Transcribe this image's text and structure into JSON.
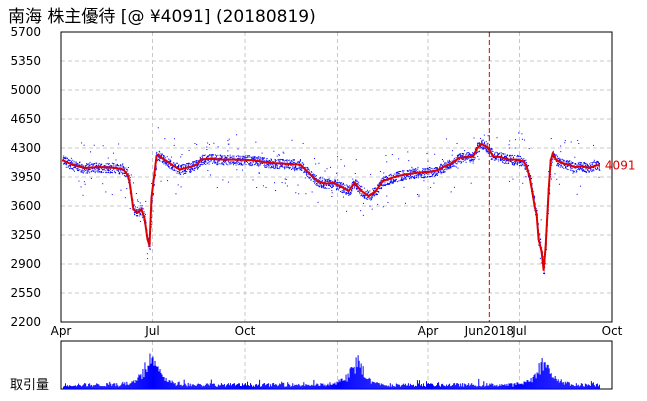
{
  "chart_data": {
    "type": "line",
    "title": "南海 株主優待 [@ ¥4091] (20180819)",
    "xlabel": "",
    "ylabel": "",
    "ylim": [
      2200,
      5700
    ],
    "yticks": [
      2200,
      2550,
      2900,
      3250,
      3600,
      3950,
      4300,
      4650,
      5000,
      5350,
      5700
    ],
    "x_range": [
      "2017-04-01",
      "2018-10-01"
    ],
    "x_ticks": [
      {
        "date": "2017-04-01",
        "label": "Apr"
      },
      {
        "date": "2017-07-01",
        "label": "Jul"
      },
      {
        "date": "2017-10-01",
        "label": "Oct"
      },
      {
        "date": "2018-01-01",
        "label": ""
      },
      {
        "date": "2018-04-01",
        "label": "Apr"
      },
      {
        "date": "2018-07-01",
        "label": "Jul"
      },
      {
        "date": "2018-10-01",
        "label": "Oct"
      }
    ],
    "marker": {
      "date": "2018-06-01",
      "label": "Jun2018",
      "color": "#dd0000"
    },
    "last_value": {
      "value": 4091,
      "label": "4091"
    },
    "grid": true,
    "series": [
      {
        "color": "#dd0000",
        "points": [
          [
            "2017-04-03",
            4150
          ],
          [
            "2017-04-12",
            4100
          ],
          [
            "2017-04-24",
            4060
          ],
          [
            "2017-05-10",
            4070
          ],
          [
            "2017-05-25",
            4060
          ],
          [
            "2017-06-02",
            4040
          ],
          [
            "2017-06-06",
            3980
          ],
          [
            "2017-06-08",
            3900
          ],
          [
            "2017-06-09",
            3820
          ],
          [
            "2017-06-12",
            3560
          ],
          [
            "2017-06-16",
            3520
          ],
          [
            "2017-06-20",
            3560
          ],
          [
            "2017-06-23",
            3450
          ],
          [
            "2017-06-26",
            3200
          ],
          [
            "2017-06-28",
            3120
          ],
          [
            "2017-06-30",
            3700
          ],
          [
            "2017-07-03",
            4000
          ],
          [
            "2017-07-05",
            4200
          ],
          [
            "2017-07-07",
            4220
          ],
          [
            "2017-07-10",
            4180
          ],
          [
            "2017-07-14",
            4150
          ],
          [
            "2017-07-20",
            4100
          ],
          [
            "2017-07-28",
            4040
          ],
          [
            "2017-08-07",
            4070
          ],
          [
            "2017-08-14",
            4100
          ],
          [
            "2017-08-18",
            4160
          ],
          [
            "2017-08-25",
            4170
          ],
          [
            "2017-09-10",
            4160
          ],
          [
            "2017-09-25",
            4160
          ],
          [
            "2017-10-10",
            4150
          ],
          [
            "2017-10-25",
            4120
          ],
          [
            "2017-11-10",
            4110
          ],
          [
            "2017-11-25",
            4100
          ],
          [
            "2017-12-05",
            3980
          ],
          [
            "2017-12-12",
            3900
          ],
          [
            "2017-12-20",
            3870
          ],
          [
            "2017-12-28",
            3880
          ],
          [
            "2018-01-05",
            3830
          ],
          [
            "2018-01-12",
            3780
          ],
          [
            "2018-01-18",
            3880
          ],
          [
            "2018-01-24",
            3790
          ],
          [
            "2018-02-01",
            3720
          ],
          [
            "2018-02-08",
            3780
          ],
          [
            "2018-02-15",
            3900
          ],
          [
            "2018-02-22",
            3930
          ],
          [
            "2018-03-01",
            3960
          ],
          [
            "2018-03-10",
            3980
          ],
          [
            "2018-03-20",
            4000
          ],
          [
            "2018-04-01",
            4010
          ],
          [
            "2018-04-10",
            4030
          ],
          [
            "2018-04-18",
            4080
          ],
          [
            "2018-04-25",
            4120
          ],
          [
            "2018-05-02",
            4180
          ],
          [
            "2018-05-09",
            4190
          ],
          [
            "2018-05-16",
            4200
          ],
          [
            "2018-05-20",
            4300
          ],
          [
            "2018-05-24",
            4350
          ],
          [
            "2018-05-30",
            4310
          ],
          [
            "2018-06-05",
            4200
          ],
          [
            "2018-06-12",
            4190
          ],
          [
            "2018-06-20",
            4160
          ],
          [
            "2018-06-28",
            4160
          ],
          [
            "2018-07-05",
            4140
          ],
          [
            "2018-07-08",
            4080
          ],
          [
            "2018-07-11",
            3950
          ],
          [
            "2018-07-14",
            3750
          ],
          [
            "2018-07-16",
            3600
          ],
          [
            "2018-07-18",
            3500
          ],
          [
            "2018-07-20",
            3200
          ],
          [
            "2018-07-23",
            3050
          ],
          [
            "2018-07-25",
            2830
          ],
          [
            "2018-07-27",
            3100
          ],
          [
            "2018-07-30",
            3800
          ],
          [
            "2018-08-01",
            4150
          ],
          [
            "2018-08-03",
            4230
          ],
          [
            "2018-08-07",
            4150
          ],
          [
            "2018-08-12",
            4120
          ],
          [
            "2018-08-18",
            4100
          ],
          [
            "2018-08-25",
            4070
          ],
          [
            "2018-09-01",
            4080
          ],
          [
            "2018-09-08",
            4060
          ],
          [
            "2018-09-15",
            4090
          ],
          [
            "2018-09-18",
            4091
          ]
        ]
      }
    ]
  },
  "volume_panel": {
    "label": "取引量",
    "color": "#0000ff",
    "spikes": [
      {
        "date": "2017-06-29",
        "value": 1.0
      },
      {
        "date": "2018-01-20",
        "value": 0.85
      },
      {
        "date": "2018-07-25",
        "value": 0.8
      }
    ]
  },
  "colors": {
    "price_line": "#dd0000",
    "scatter_dots": "#0000ff",
    "grid": "#c8c8c8",
    "frame": "#000000"
  }
}
